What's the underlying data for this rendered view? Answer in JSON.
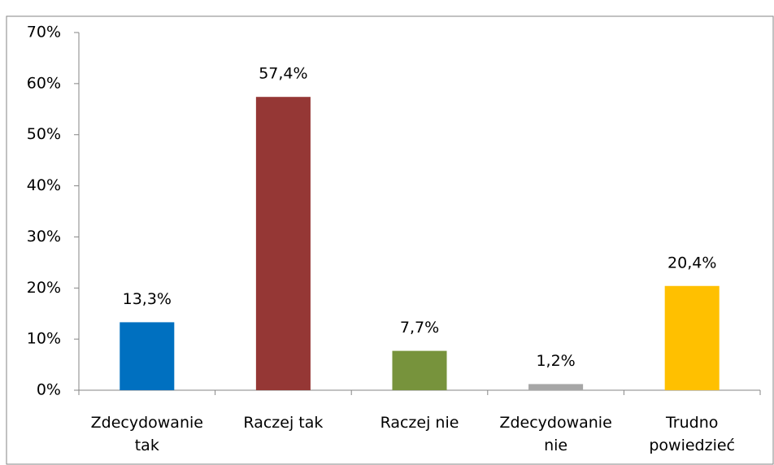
{
  "chart_data": {
    "type": "bar",
    "categories": [
      "Zdecydowanie tak",
      "Raczej tak",
      "Raczej nie",
      "Zdecydowanie nie",
      "Trudno powiedzieć"
    ],
    "values": [
      13.3,
      57.4,
      7.7,
      1.2,
      20.4
    ],
    "value_labels": [
      "13,3%",
      "57,4%",
      "7,7%",
      "1,2%",
      "20,4%"
    ],
    "colors": [
      "#0070c0",
      "#953735",
      "#77933c",
      "#a6a6a6",
      "#ffc000"
    ],
    "ylim": [
      0,
      70
    ],
    "yticks": [
      {
        "value": 0,
        "label": "0%"
      },
      {
        "value": 10,
        "label": "10%"
      },
      {
        "value": 20,
        "label": "20%"
      },
      {
        "value": 30,
        "label": "30%"
      },
      {
        "value": 40,
        "label": "40%"
      },
      {
        "value": 50,
        "label": "50%"
      },
      {
        "value": 60,
        "label": "60%"
      },
      {
        "value": 70,
        "label": "70%"
      }
    ],
    "grid": false
  }
}
